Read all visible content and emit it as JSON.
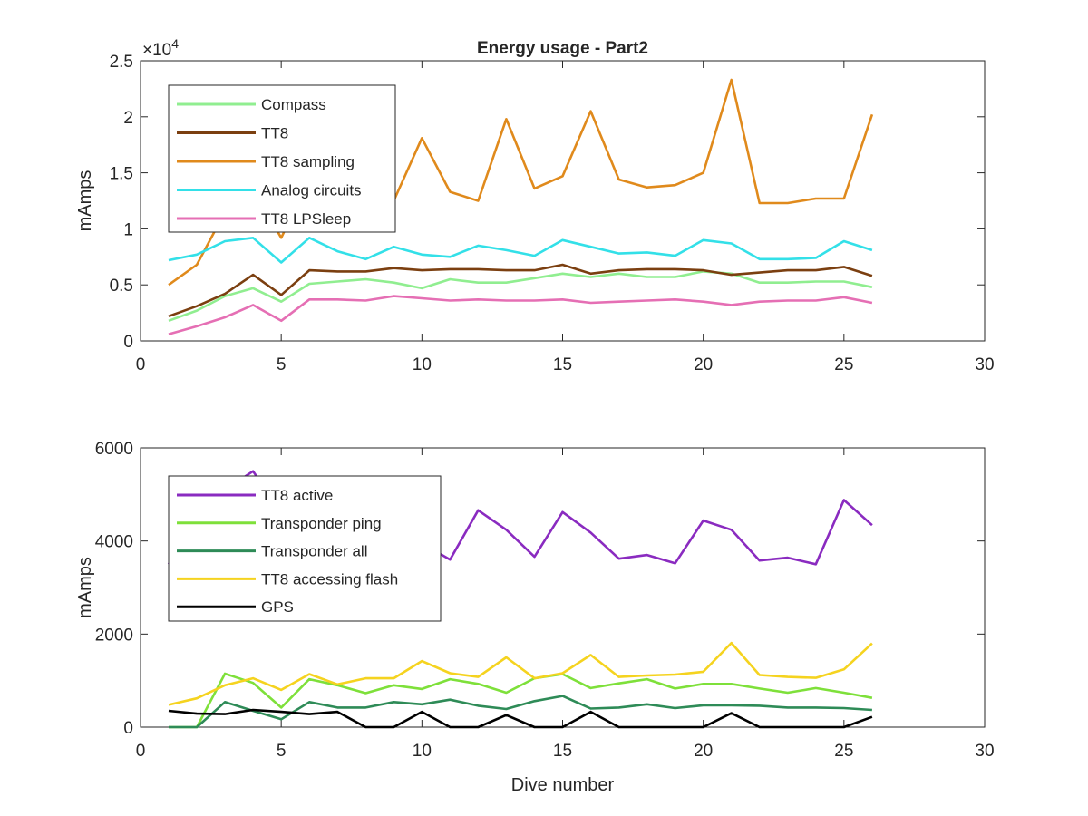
{
  "chart_data": [
    {
      "type": "line",
      "title": "Energy usage - Part2",
      "xlabel": "",
      "ylabel": "mAmps",
      "y_exponent_label": "×10",
      "y_exponent_power": "4",
      "xlim": [
        0,
        30
      ],
      "ylim": [
        0,
        25000
      ],
      "xticks": [
        0,
        5,
        10,
        15,
        20,
        25,
        30
      ],
      "xtick_labels": [
        "0",
        "5",
        "10",
        "15",
        "20",
        "25",
        "30"
      ],
      "yticks": [
        0,
        5000,
        10000,
        15000,
        20000,
        25000
      ],
      "ytick_labels": [
        "0",
        "0.5",
        "1",
        "1.5",
        "2",
        "2.5"
      ],
      "grid": false,
      "legend_position": "top-left",
      "x": [
        1,
        2,
        3,
        4,
        5,
        6,
        7,
        8,
        9,
        10,
        11,
        12,
        13,
        14,
        15,
        16,
        17,
        18,
        19,
        20,
        21,
        22,
        23,
        24,
        25,
        26
      ],
      "series": [
        {
          "name": "Compass",
          "color": "#90EE90",
          "values": [
            1800,
            2700,
            4000,
            4700,
            3500,
            5100,
            5300,
            5500,
            5200,
            4700,
            5500,
            5200,
            5200,
            5600,
            6000,
            5700,
            6000,
            5700,
            5700,
            6200,
            6000,
            5200,
            5200,
            5300,
            5300,
            4800
          ]
        },
        {
          "name": "TT8",
          "color": "#7B3F10",
          "values": [
            2200,
            3100,
            4200,
            5900,
            4100,
            6300,
            6200,
            6200,
            6500,
            6300,
            6400,
            6400,
            6300,
            6300,
            6800,
            6000,
            6300,
            6400,
            6400,
            6300,
            5900,
            6100,
            6300,
            6300,
            6600,
            5800
          ]
        },
        {
          "name": "TT8 sampling",
          "color": "#E08A1C",
          "values": [
            5000,
            6800,
            11500,
            13500,
            9200,
            14500,
            14000,
            13000,
            12500,
            18100,
            13300,
            12500,
            19800,
            13600,
            14700,
            20500,
            14400,
            13700,
            13900,
            15000,
            23300,
            12300,
            12300,
            12700,
            12700,
            20200
          ]
        },
        {
          "name": "Analog circuits",
          "color": "#33E0E8",
          "values": [
            7200,
            7700,
            8900,
            9200,
            7000,
            9200,
            8000,
            7300,
            8400,
            7700,
            7500,
            8500,
            8100,
            7600,
            9000,
            8400,
            7800,
            7900,
            7600,
            9000,
            8700,
            7300,
            7300,
            7400,
            8900,
            8100
          ]
        },
        {
          "name": "TT8 LPSleep",
          "color": "#E56FB4",
          "values": [
            600,
            1300,
            2100,
            3200,
            1800,
            3700,
            3700,
            3600,
            4000,
            3800,
            3600,
            3700,
            3600,
            3600,
            3700,
            3400,
            3500,
            3600,
            3700,
            3500,
            3200,
            3500,
            3600,
            3600,
            3900,
            3400
          ]
        }
      ]
    },
    {
      "type": "line",
      "title": "",
      "xlabel": "Dive number",
      "ylabel": "mAmps",
      "xlim": [
        0,
        30
      ],
      "ylim": [
        0,
        6000
      ],
      "xticks": [
        0,
        5,
        10,
        15,
        20,
        25,
        30
      ],
      "xtick_labels": [
        "0",
        "5",
        "10",
        "15",
        "20",
        "25",
        "30"
      ],
      "yticks": [
        0,
        2000,
        4000,
        6000
      ],
      "ytick_labels": [
        "0",
        "2000",
        "4000",
        "6000"
      ],
      "grid": false,
      "legend_position": "top-left",
      "x": [
        1,
        2,
        3,
        4,
        5,
        6,
        7,
        8,
        9,
        10,
        11,
        12,
        13,
        14,
        15,
        16,
        17,
        18,
        19,
        20,
        21,
        22,
        23,
        24,
        25,
        26
      ],
      "series": [
        {
          "name": "TT8 active",
          "color": "#8A2BC0",
          "values": [
            3500,
            4500,
            5100,
            5500,
            4600,
            4500,
            4300,
            4000,
            4200,
            3950,
            3600,
            4660,
            4240,
            3660,
            4620,
            4180,
            3620,
            3700,
            3520,
            4440,
            4240,
            3580,
            3640,
            3500,
            4880,
            4340
          ]
        },
        {
          "name": "Transponder ping",
          "color": "#7EE03A",
          "values": [
            0,
            0,
            1150,
            950,
            420,
            1030,
            900,
            730,
            900,
            820,
            1030,
            930,
            740,
            1050,
            1140,
            840,
            940,
            1030,
            830,
            930,
            930,
            830,
            740,
            840,
            740,
            630
          ]
        },
        {
          "name": "Transponder all",
          "color": "#2E8B57",
          "values": [
            0,
            0,
            540,
            350,
            170,
            540,
            420,
            420,
            540,
            490,
            590,
            460,
            390,
            560,
            670,
            400,
            420,
            490,
            410,
            470,
            470,
            460,
            420,
            420,
            410,
            370
          ]
        },
        {
          "name": "TT8 accessing flash",
          "color": "#F5D31F",
          "values": [
            480,
            620,
            900,
            1050,
            800,
            1140,
            920,
            1050,
            1050,
            1420,
            1160,
            1080,
            1500,
            1050,
            1160,
            1550,
            1080,
            1110,
            1130,
            1190,
            1810,
            1120,
            1080,
            1060,
            1240,
            1800
          ]
        },
        {
          "name": "GPS",
          "color": "#000000",
          "values": [
            350,
            290,
            280,
            370,
            330,
            280,
            330,
            0,
            0,
            330,
            0,
            0,
            260,
            0,
            0,
            330,
            0,
            0,
            0,
            0,
            300,
            0,
            0,
            0,
            0,
            220
          ]
        }
      ]
    }
  ]
}
